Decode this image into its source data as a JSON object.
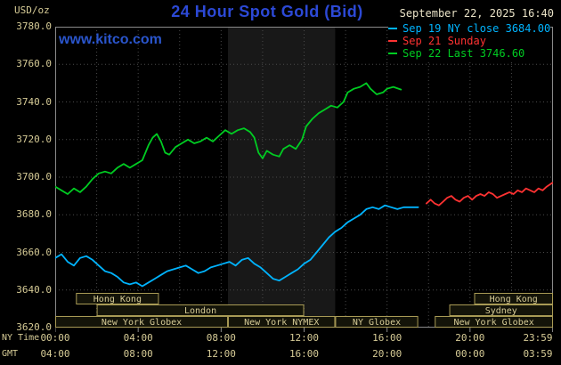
{
  "header": {
    "units_label": "USD/oz",
    "title": "24 Hour Spot Gold (Bid)",
    "watermark": "www.kitco.com",
    "datetime": "September 22, 2025 16:40"
  },
  "legend": {
    "items": [
      {
        "label": "Sep 19 NY close 3684.00",
        "color": "#00b4ff"
      },
      {
        "label": "Sep 21 Sunday",
        "color": "#ff3232"
      },
      {
        "label": "Sep 22 Last 3746.60",
        "color": "#00cc22"
      }
    ]
  },
  "axes": {
    "y_ticks": [
      "3780.0",
      "3760.0",
      "3740.0",
      "3720.0",
      "3700.0",
      "3680.0",
      "3660.0",
      "3640.0",
      "3620.0"
    ],
    "tick_hours": [
      0,
      4,
      8,
      12,
      16,
      20,
      23.983
    ],
    "x_rows": [
      {
        "label": "NY Time",
        "ticks": [
          "00:00",
          "04:00",
          "08:00",
          "12:00",
          "16:00",
          "20:00",
          "23:59"
        ]
      },
      {
        "label": "GMT",
        "ticks": [
          "04:00",
          "08:00",
          "12:00",
          "16:00",
          "20:00",
          "00:00",
          "03:59"
        ]
      }
    ]
  },
  "sessions": [
    {
      "row": 0,
      "start": 1.0,
      "end": 5.0,
      "label": "Hong Kong"
    },
    {
      "row": 0,
      "start": 20.2,
      "end": 24,
      "label": "Hong Kong"
    },
    {
      "row": 1,
      "start": 2.0,
      "end": 12.0,
      "label": "London"
    },
    {
      "row": 1,
      "start": 19.0,
      "end": 24,
      "label": "Sydney"
    },
    {
      "row": 2,
      "start": 0,
      "end": 8.33,
      "label": "New York Globex"
    },
    {
      "row": 2,
      "start": 8.33,
      "end": 13.5,
      "label": "New York NYMEX"
    },
    {
      "row": 2,
      "start": 13.5,
      "end": 17.5,
      "label": "NY Globex"
    },
    {
      "row": 2,
      "start": 18.3,
      "end": 24,
      "label": "New York Globex"
    }
  ],
  "colors": {
    "background": "#000000",
    "grid": "#4a4a4a",
    "frame": "#8a8a8a",
    "axis_text": "#d6cb96",
    "date_text": "#e9e2c6",
    "title_blue": "#2c49d6",
    "watermark_blue": "#2a55cc",
    "session_border": "#a89a55",
    "session_fill": "#141409",
    "band": "#181818"
  },
  "chart_data": {
    "type": "line",
    "title": "24 Hour Spot Gold (Bid)",
    "xlabel": "NY Time (hours 00:00-23:59)",
    "ylabel": "USD/oz",
    "xlim": [
      0,
      24
    ],
    "ylim": [
      3620,
      3780
    ],
    "y_grid_step": 20,
    "x_grid_step_hours": 2,
    "grid": "dotted",
    "legend_position": "top-right",
    "highlight_band_hours": [
      8.33,
      13.5
    ],
    "series": [
      {
        "name": "Sep 19 NY close 3684.00",
        "color": "#00b4ff",
        "points": [
          [
            0,
            3657
          ],
          [
            0.3,
            3659
          ],
          [
            0.6,
            3655
          ],
          [
            0.9,
            3653
          ],
          [
            1.2,
            3657
          ],
          [
            1.5,
            3658
          ],
          [
            1.8,
            3656
          ],
          [
            2.1,
            3653
          ],
          [
            2.4,
            3650
          ],
          [
            2.7,
            3649
          ],
          [
            3,
            3647
          ],
          [
            3.3,
            3644
          ],
          [
            3.6,
            3643
          ],
          [
            3.9,
            3644
          ],
          [
            4.2,
            3642
          ],
          [
            4.5,
            3644
          ],
          [
            4.8,
            3646
          ],
          [
            5.1,
            3648
          ],
          [
            5.4,
            3650
          ],
          [
            5.7,
            3651
          ],
          [
            6,
            3652
          ],
          [
            6.3,
            3653
          ],
          [
            6.6,
            3651
          ],
          [
            6.9,
            3649
          ],
          [
            7.2,
            3650
          ],
          [
            7.5,
            3652
          ],
          [
            7.8,
            3653
          ],
          [
            8.1,
            3654
          ],
          [
            8.4,
            3655
          ],
          [
            8.7,
            3653
          ],
          [
            9,
            3656
          ],
          [
            9.3,
            3657
          ],
          [
            9.6,
            3654
          ],
          [
            9.9,
            3652
          ],
          [
            10.2,
            3649
          ],
          [
            10.5,
            3646
          ],
          [
            10.8,
            3645
          ],
          [
            11.1,
            3647
          ],
          [
            11.4,
            3649
          ],
          [
            11.7,
            3651
          ],
          [
            12,
            3654
          ],
          [
            12.3,
            3656
          ],
          [
            12.6,
            3660
          ],
          [
            12.9,
            3664
          ],
          [
            13.2,
            3668
          ],
          [
            13.5,
            3671
          ],
          [
            13.8,
            3673
          ],
          [
            14.1,
            3676
          ],
          [
            14.4,
            3678
          ],
          [
            14.7,
            3680
          ],
          [
            15,
            3683
          ],
          [
            15.3,
            3684
          ],
          [
            15.6,
            3683
          ],
          [
            15.9,
            3685
          ],
          [
            16.2,
            3684
          ],
          [
            16.5,
            3683
          ],
          [
            16.8,
            3684
          ],
          [
            17.1,
            3684
          ],
          [
            17.5,
            3684
          ]
        ]
      },
      {
        "name": "Sep 21 Sunday",
        "color": "#ff3232",
        "points": [
          [
            17.9,
            3686
          ],
          [
            18.1,
            3688
          ],
          [
            18.3,
            3686
          ],
          [
            18.5,
            3685
          ],
          [
            18.7,
            3687
          ],
          [
            18.9,
            3689
          ],
          [
            19.1,
            3690
          ],
          [
            19.3,
            3688
          ],
          [
            19.5,
            3687
          ],
          [
            19.7,
            3689
          ],
          [
            19.9,
            3690
          ],
          [
            20.1,
            3688
          ],
          [
            20.3,
            3690
          ],
          [
            20.5,
            3691
          ],
          [
            20.7,
            3690
          ],
          [
            20.9,
            3692
          ],
          [
            21.1,
            3691
          ],
          [
            21.3,
            3689
          ],
          [
            21.5,
            3690
          ],
          [
            21.7,
            3691
          ],
          [
            21.9,
            3692
          ],
          [
            22.1,
            3691
          ],
          [
            22.3,
            3693
          ],
          [
            22.5,
            3692
          ],
          [
            22.7,
            3694
          ],
          [
            22.9,
            3693
          ],
          [
            23.1,
            3692
          ],
          [
            23.3,
            3694
          ],
          [
            23.5,
            3693
          ],
          [
            23.7,
            3695
          ],
          [
            23.98,
            3697
          ]
        ]
      },
      {
        "name": "Sep 22 Last 3746.60",
        "color": "#00cc22",
        "points": [
          [
            0,
            3695
          ],
          [
            0.3,
            3693
          ],
          [
            0.6,
            3691
          ],
          [
            0.9,
            3694
          ],
          [
            1.2,
            3692
          ],
          [
            1.5,
            3695
          ],
          [
            1.8,
            3699
          ],
          [
            2.1,
            3702
          ],
          [
            2.4,
            3703
          ],
          [
            2.7,
            3702
          ],
          [
            3,
            3705
          ],
          [
            3.3,
            3707
          ],
          [
            3.6,
            3705
          ],
          [
            3.9,
            3707
          ],
          [
            4.2,
            3709
          ],
          [
            4.5,
            3717
          ],
          [
            4.7,
            3721
          ],
          [
            4.9,
            3723
          ],
          [
            5.1,
            3719
          ],
          [
            5.3,
            3713
          ],
          [
            5.5,
            3712
          ],
          [
            5.8,
            3716
          ],
          [
            6.1,
            3718
          ],
          [
            6.4,
            3720
          ],
          [
            6.7,
            3718
          ],
          [
            7,
            3719
          ],
          [
            7.3,
            3721
          ],
          [
            7.6,
            3719
          ],
          [
            7.9,
            3722
          ],
          [
            8.2,
            3725
          ],
          [
            8.5,
            3723
          ],
          [
            8.8,
            3725
          ],
          [
            9.1,
            3726
          ],
          [
            9.4,
            3724
          ],
          [
            9.6,
            3721
          ],
          [
            9.8,
            3713
          ],
          [
            10,
            3710
          ],
          [
            10.2,
            3714
          ],
          [
            10.5,
            3712
          ],
          [
            10.8,
            3711
          ],
          [
            11,
            3715
          ],
          [
            11.3,
            3717
          ],
          [
            11.6,
            3715
          ],
          [
            11.9,
            3720
          ],
          [
            12.1,
            3727
          ],
          [
            12.4,
            3731
          ],
          [
            12.7,
            3734
          ],
          [
            13,
            3736
          ],
          [
            13.3,
            3738
          ],
          [
            13.6,
            3737
          ],
          [
            13.9,
            3740
          ],
          [
            14.1,
            3745
          ],
          [
            14.4,
            3747
          ],
          [
            14.7,
            3748
          ],
          [
            15,
            3750
          ],
          [
            15.2,
            3747
          ],
          [
            15.5,
            3744
          ],
          [
            15.8,
            3745
          ],
          [
            16,
            3747
          ],
          [
            16.3,
            3748
          ],
          [
            16.67,
            3746.6
          ]
        ]
      }
    ]
  }
}
